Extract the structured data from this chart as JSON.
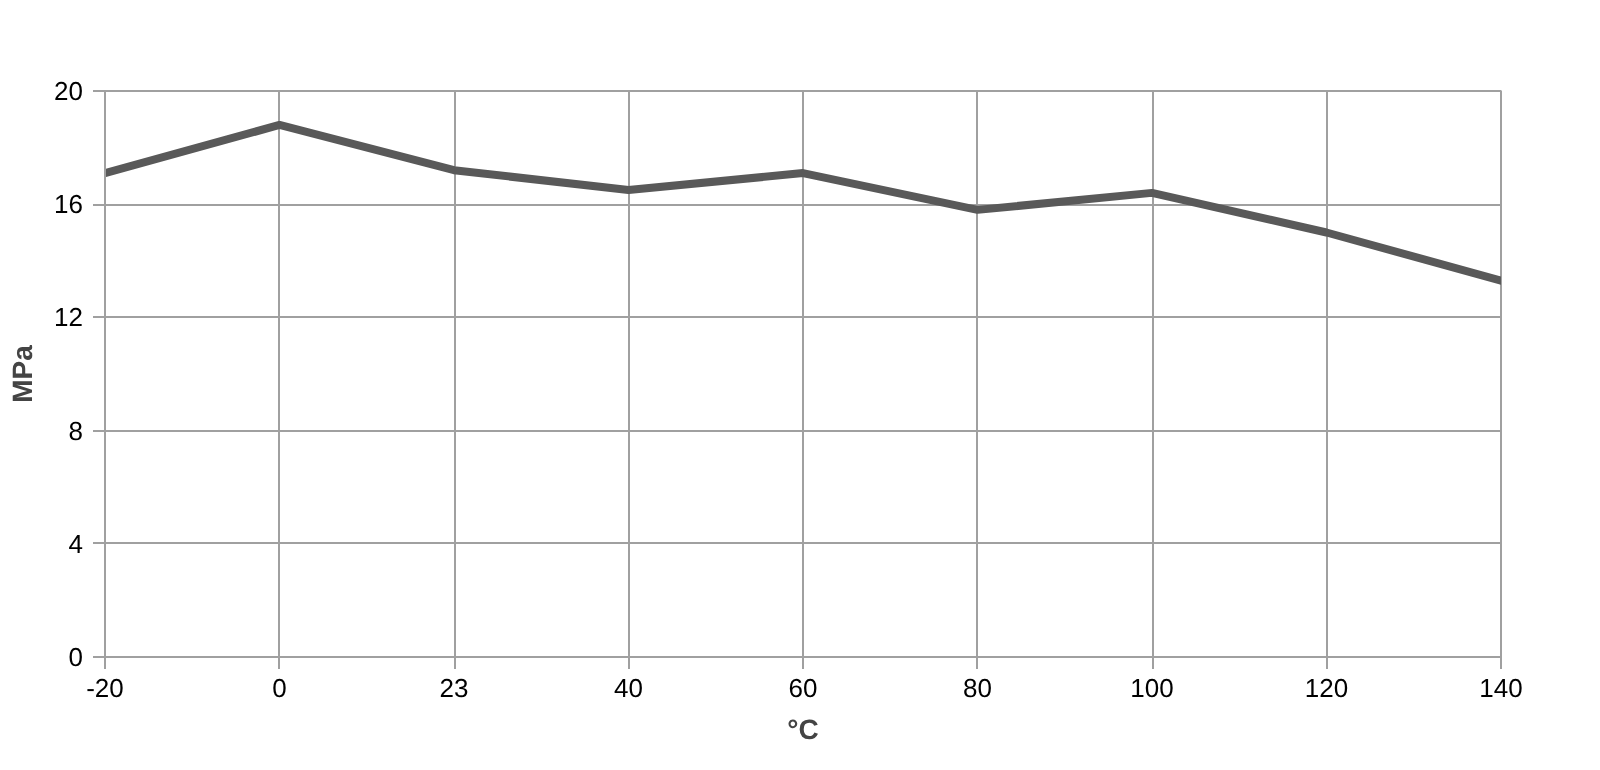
{
  "chart_data": {
    "type": "line",
    "xlabel": "°C",
    "ylabel": "MPa",
    "categories": [
      "-20",
      "0",
      "23",
      "40",
      "60",
      "80",
      "100",
      "120",
      "140"
    ],
    "series": [
      {
        "color": "#595959",
        "values": [
          17.1,
          18.8,
          17.2,
          16.5,
          17.1,
          15.8,
          16.4,
          15.0,
          13.3
        ]
      }
    ],
    "ylim": [
      0,
      20
    ],
    "yticks": [
      0,
      4,
      8,
      12,
      16,
      20
    ],
    "grid": true
  }
}
